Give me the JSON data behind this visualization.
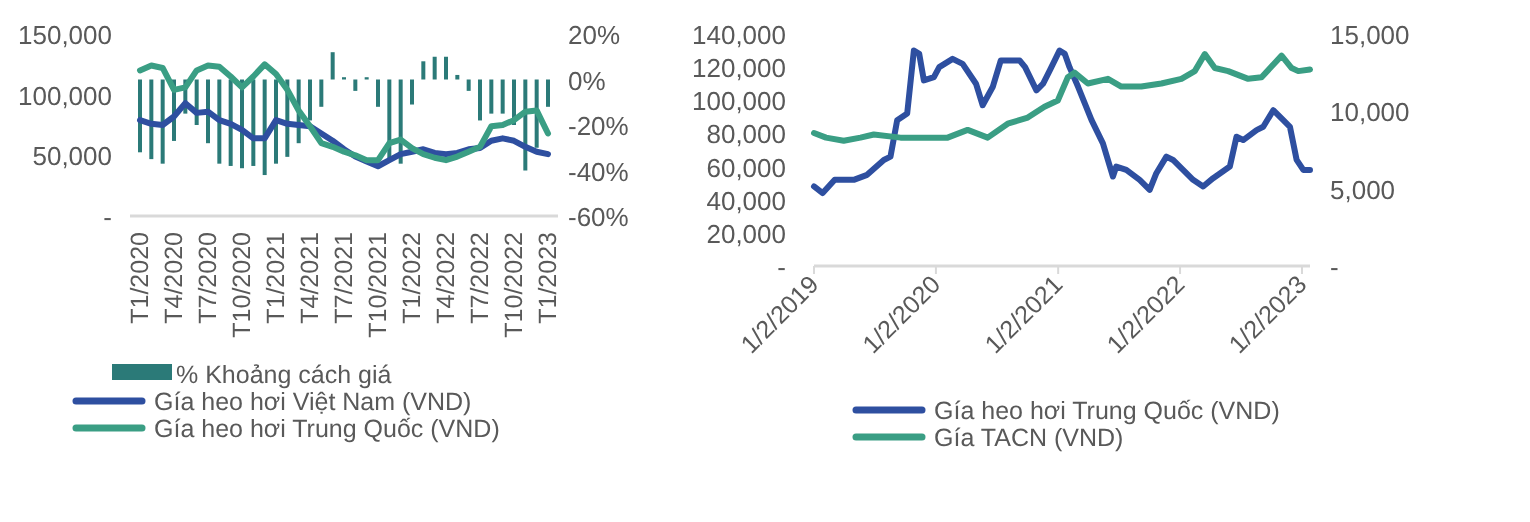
{
  "chart_data": [
    {
      "type": "line",
      "categories": [
        "T1/2020",
        null,
        null,
        "T4/2020",
        null,
        null,
        "T7/2020",
        null,
        null,
        "T10/2020",
        null,
        null,
        "T1/2021",
        null,
        null,
        "T4/2021",
        null,
        null,
        "T7/2021",
        null,
        null,
        "T10/2021",
        null,
        null,
        "T1/2022",
        null,
        null,
        "T4/2022",
        null,
        null,
        "T7/2022",
        null,
        null,
        "T10/2022",
        null,
        null,
        "T1/2023"
      ],
      "series": [
        {
          "name": "% Khoảng cách giá",
          "type": "bar",
          "axis": "y2",
          "color": "#2b7a78",
          "values": [
            -32,
            -35,
            -37,
            -27,
            -15,
            -20,
            -28,
            -37,
            -38,
            -39,
            -38,
            -42,
            -37,
            -34,
            -28,
            -18,
            -12,
            12,
            1,
            -5,
            1,
            -12,
            -35,
            -37,
            -11,
            8,
            10,
            10,
            2,
            -5,
            -18,
            -15,
            -15,
            -20,
            -40,
            -30,
            -12
          ]
        },
        {
          "name": "Gía heo hơi Việt Nam (VND)",
          "color": "#2e4fa0",
          "values": [
            79000,
            76000,
            75000,
            82000,
            93000,
            85000,
            86000,
            79000,
            76000,
            71000,
            64000,
            64000,
            79000,
            76000,
            75000,
            74000,
            68000,
            62000,
            55000,
            49000,
            45000,
            41000,
            46000,
            51000,
            53000,
            55000,
            52000,
            51000,
            52000,
            55000,
            56000,
            62000,
            64000,
            62000,
            57000,
            53000,
            51000
          ]
        },
        {
          "name": "Gía heo hơi Trung Quốc (VND)",
          "color": "#3a9e84",
          "values": [
            120000,
            124000,
            122000,
            104000,
            106000,
            120000,
            124000,
            123000,
            115000,
            106000,
            115000,
            125000,
            117000,
            104000,
            87000,
            74000,
            60000,
            57000,
            53000,
            50000,
            46000,
            46000,
            60000,
            63000,
            56000,
            51000,
            48000,
            46000,
            49000,
            53000,
            57000,
            74000,
            75000,
            79000,
            86000,
            87000,
            68000
          ]
        }
      ],
      "ylim": [
        0,
        150000
      ],
      "yticks": [
        {
          "value": 0,
          "label": "-"
        },
        {
          "value": 50000,
          "label": "50,000"
        },
        {
          "value": 100000,
          "label": "100,000"
        },
        {
          "value": 150000,
          "label": "150,000"
        }
      ],
      "y2lim": [
        -60,
        20
      ],
      "y2ticks": [
        {
          "value": 20,
          "label": "20%"
        },
        {
          "value": 0,
          "label": "0%"
        },
        {
          "value": -20,
          "label": "-20%"
        },
        {
          "value": -40,
          "label": "-40%"
        },
        {
          "value": -60,
          "label": "-60%"
        }
      ],
      "legend": "bottom",
      "grid": false
    },
    {
      "type": "line",
      "series": [
        {
          "name": "Gía heo hơi Trung Quốc (VND)",
          "color": "#2e4fa0",
          "x": [
            "2019-01-02",
            "2019-01-28",
            "2019-03-05",
            "2019-05-01",
            "2019-06-10",
            "2019-07-30",
            "2019-08-19",
            "2019-09-08",
            "2019-10-08",
            "2019-10-28",
            "2019-11-13",
            "2019-11-27",
            "2019-12-27",
            "2020-01-12",
            "2020-02-21",
            "2020-03-22",
            "2020-05-01",
            "2020-05-21",
            "2020-06-20",
            "2020-07-14",
            "2020-09-09",
            "2020-09-25",
            "2020-10-29",
            "2020-11-18",
            "2020-12-08",
            "2021-01-06",
            "2021-01-22",
            "2021-02-05",
            "2021-03-03",
            "2021-04-12",
            "2021-05-16",
            "2021-06-15",
            "2021-06-25",
            "2021-07-25",
            "2021-09-03",
            "2021-10-03",
            "2021-10-23",
            "2021-11-22",
            "2021-12-12",
            "2022-01-11",
            "2022-02-10",
            "2022-03-12",
            "2022-04-11",
            "2022-05-31",
            "2022-06-20",
            "2022-07-10",
            "2022-08-19",
            "2022-09-08",
            "2022-10-08",
            "2022-11-07",
            "2022-11-27",
            "2022-12-17",
            "2023-01-06",
            "2023-01-26"
          ],
          "values": [
            48000,
            44000,
            52000,
            52000,
            55000,
            64000,
            66000,
            88000,
            92000,
            130000,
            128000,
            112000,
            114000,
            120000,
            125000,
            122000,
            110000,
            97000,
            108000,
            124000,
            124000,
            120000,
            106000,
            110000,
            118000,
            130000,
            128000,
            120000,
            108000,
            88000,
            74000,
            54000,
            60000,
            58000,
            52000,
            46000,
            56000,
            66000,
            64000,
            58000,
            52000,
            48000,
            53000,
            60000,
            78000,
            76000,
            82000,
            84000,
            94000,
            88000,
            84000,
            64000,
            58000,
            58000
          ]
        },
        {
          "name": "Gía TACN (VND)",
          "color": "#3a9e84",
          "axis": "y2",
          "x": [
            "2019-01-02",
            "2019-02-07",
            "2019-04-01",
            "2019-05-21",
            "2019-06-30",
            "2019-09-18",
            "2019-12-07",
            "2020-02-06",
            "2020-04-06",
            "2020-06-05",
            "2020-08-04",
            "2020-10-03",
            "2020-11-22",
            "2021-01-01",
            "2021-01-31",
            "2021-02-20",
            "2021-04-01",
            "2021-05-31",
            "2021-07-10",
            "2021-09-08",
            "2021-11-07",
            "2022-01-06",
            "2022-02-15",
            "2022-03-17",
            "2022-04-16",
            "2022-05-26",
            "2022-07-25",
            "2022-09-03",
            "2022-11-02",
            "2022-12-02",
            "2022-12-22",
            "2023-01-26"
          ],
          "values": [
            8600,
            8300,
            8100,
            8300,
            8500,
            8300,
            8300,
            8300,
            8800,
            8300,
            9200,
            9600,
            10300,
            10700,
            12200,
            12500,
            11800,
            12100,
            11600,
            11600,
            11800,
            12100,
            12600,
            13700,
            12800,
            12600,
            12100,
            12200,
            13600,
            12800,
            12600,
            12700
          ]
        }
      ],
      "xlim": [
        "2019-01-02",
        "2023-01-26"
      ],
      "xticks": [
        {
          "value": "2019-01-02",
          "label": "1/2/2019"
        },
        {
          "value": "2020-01-02",
          "label": "1/2/2020"
        },
        {
          "value": "2021-01-02",
          "label": "1/2/2021"
        },
        {
          "value": "2022-01-02",
          "label": "1/2/2022"
        },
        {
          "value": "2023-01-02",
          "label": "1/2/2023"
        }
      ],
      "ylim": [
        0,
        140000
      ],
      "yticks": [
        {
          "value": 0,
          "label": "-"
        },
        {
          "value": 20000,
          "label": "20,000"
        },
        {
          "value": 40000,
          "label": "40,000"
        },
        {
          "value": 60000,
          "label": "60,000"
        },
        {
          "value": 80000,
          "label": "80,000"
        },
        {
          "value": 100000,
          "label": "100,000"
        },
        {
          "value": 120000,
          "label": "120,000"
        },
        {
          "value": 140000,
          "label": "140,000"
        }
      ],
      "y2lim": [
        0,
        15000
      ],
      "y2ticks": [
        {
          "value": 0,
          "label": "-"
        },
        {
          "value": 5000,
          "label": "5,000"
        },
        {
          "value": 10000,
          "label": "10,000"
        },
        {
          "value": 15000,
          "label": "15,000"
        }
      ],
      "legend": "bottom",
      "grid": false
    }
  ]
}
